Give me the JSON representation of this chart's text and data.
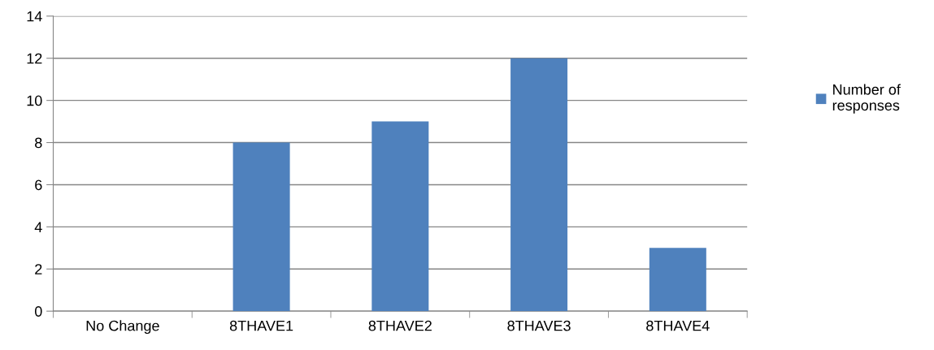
{
  "chart_data": {
    "type": "bar",
    "categories": [
      "No Change",
      "8THAVE1",
      "8THAVE2",
      "8THAVE3",
      "8THAVE4"
    ],
    "series": [
      {
        "name": "Number of\nresponses",
        "color": "#4f81bd",
        "values": [
          0,
          8,
          9,
          12,
          3
        ]
      }
    ],
    "ylim": [
      0,
      14
    ],
    "yticks": [
      0,
      2,
      4,
      6,
      8,
      10,
      12,
      14
    ],
    "grid": "y",
    "legend": "right"
  }
}
